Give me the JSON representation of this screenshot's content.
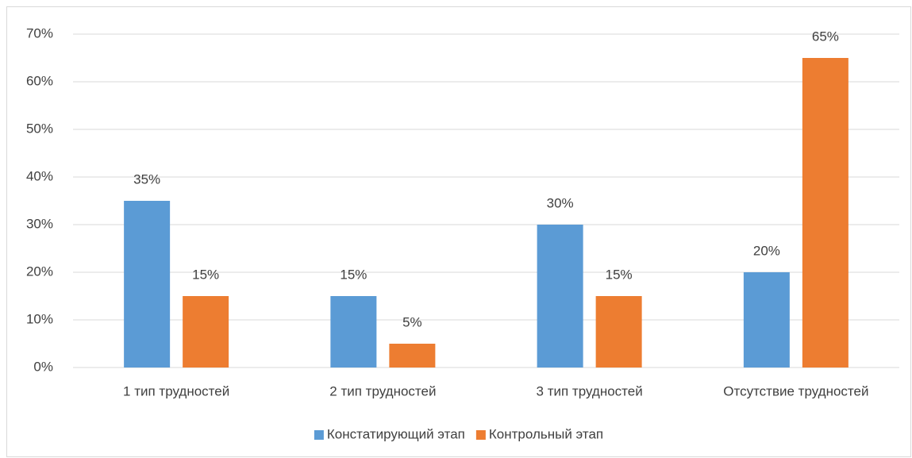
{
  "chart_data": {
    "type": "bar",
    "categories": [
      "1 тип трудностей",
      "2 тип трудностей",
      "3 тип трудностей",
      "Отсутствие трудностей"
    ],
    "series": [
      {
        "name": "Констатирующий этап",
        "color": "#5b9bd5",
        "values": [
          35,
          15,
          30,
          20
        ],
        "value_labels": [
          "35%",
          "15%",
          "30%",
          "20%"
        ]
      },
      {
        "name": "Контрольный этап",
        "color": "#ed7d31",
        "values": [
          15,
          5,
          15,
          65
        ],
        "value_labels": [
          "15%",
          "5%",
          "15%",
          "65%"
        ]
      }
    ],
    "ylim": [
      0,
      70
    ],
    "yticks": [
      {
        "value": 0,
        "label": "0%"
      },
      {
        "value": 10,
        "label": "10%"
      },
      {
        "value": 20,
        "label": "20%"
      },
      {
        "value": 30,
        "label": "30%"
      },
      {
        "value": 40,
        "label": "40%"
      },
      {
        "value": 50,
        "label": "50%"
      },
      {
        "value": 60,
        "label": "60%"
      },
      {
        "value": 70,
        "label": "70%"
      }
    ],
    "grid": true,
    "legend": "bottom"
  }
}
